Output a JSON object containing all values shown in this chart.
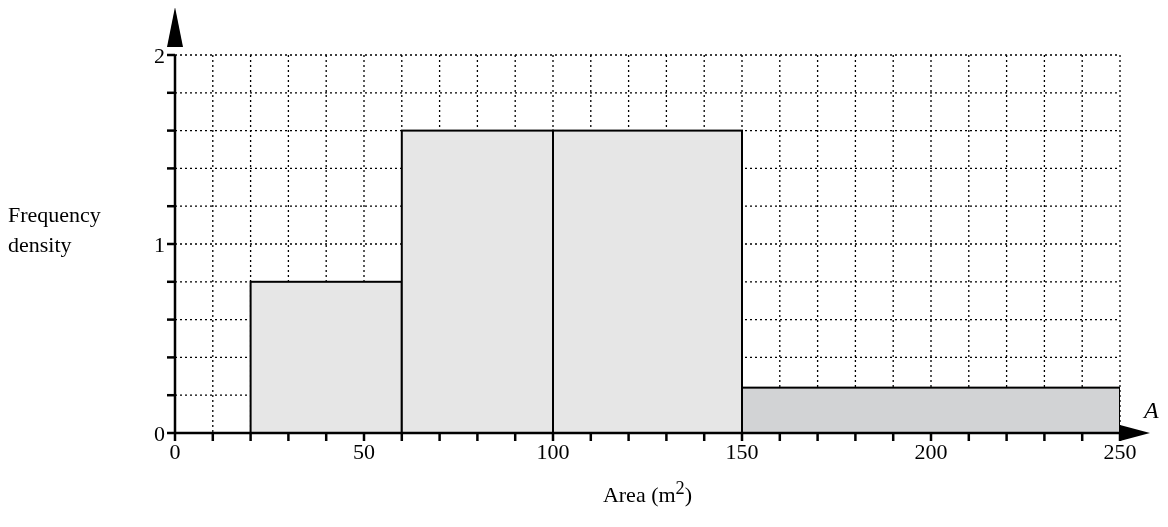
{
  "chart_data": {
    "type": "histogram",
    "xlabel": "Area (m$^{2}$)",
    "ylabel": "Frequency density",
    "annotations": [
      "A"
    ],
    "bins": [
      20,
      60,
      100,
      150,
      250
    ],
    "values": [
      0.8,
      1.6,
      1.6,
      0.24
    ],
    "colors": [
      "#e6e6e6",
      "#e6e6e6",
      "#e6e6e6",
      "#d2d3d5"
    ],
    "xlim": [
      0,
      250
    ],
    "xticks": [
      0,
      {
        "value": 10,
        "label": null
      },
      {
        "value": 20,
        "label": null
      },
      {
        "value": 30,
        "label": null
      },
      {
        "value": 40,
        "label": null
      },
      50,
      {
        "value": 60,
        "label": null
      },
      {
        "value": 70,
        "label": null
      },
      {
        "value": 80,
        "label": null
      },
      {
        "value": 90,
        "label": null
      },
      100,
      {
        "value": 110,
        "label": null
      },
      {
        "value": 120,
        "label": null
      },
      {
        "value": 130,
        "label": null
      },
      {
        "value": 140,
        "label": null
      },
      150,
      {
        "value": 160,
        "label": null
      },
      {
        "value": 170,
        "label": null
      },
      {
        "value": 180,
        "label": null
      },
      {
        "value": 190,
        "label": null
      },
      200,
      {
        "value": 210,
        "label": null
      },
      {
        "value": 220,
        "label": null
      },
      {
        "value": 230,
        "label": null
      },
      {
        "value": 240,
        "label": null
      },
      250
    ],
    "ylim": [
      0,
      2
    ],
    "yticks": [
      0,
      {
        "value": 0.2,
        "label": null
      },
      {
        "value": 0.4,
        "label": null
      },
      {
        "value": 0.6,
        "label": null
      },
      {
        "value": 0.8,
        "label": null
      },
      1,
      {
        "value": 1.2,
        "label": null
      },
      {
        "value": 1.4,
        "label": null
      },
      {
        "value": 1.6,
        "label": null
      },
      {
        "value": 1.8,
        "label": null
      },
      2
    ],
    "grid": true
  }
}
